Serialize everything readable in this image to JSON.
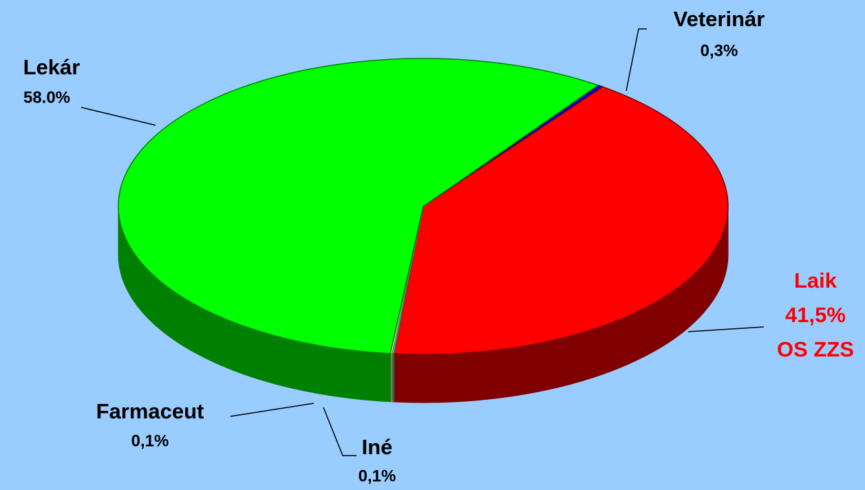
{
  "chart_data": {
    "type": "pie",
    "categories": [
      "Veterinár",
      "Laik",
      "Iné",
      "Farmaceut",
      "Lekár"
    ],
    "values": [
      0.3,
      41.5,
      0.1,
      0.1,
      58.0
    ],
    "value_labels": [
      "0,3%",
      "41,5%",
      "0,1%",
      "0,1%",
      "58.0%"
    ],
    "colors": [
      "#0000cc",
      "#ff0000",
      "#33cccc",
      "#ffff66",
      "#00ff00"
    ],
    "annotation": "OS ZZS"
  }
}
